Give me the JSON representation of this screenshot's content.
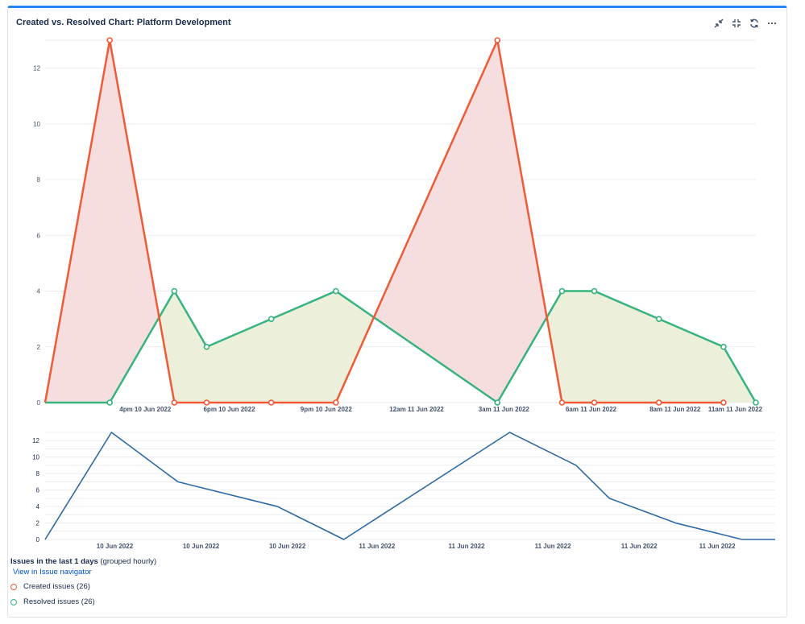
{
  "header": {
    "title": "Created vs. Resolved Chart: Platform Development",
    "tools": [
      {
        "name": "minimize-icon"
      },
      {
        "name": "collapse-icon"
      },
      {
        "name": "refresh-icon"
      },
      {
        "name": "more-icon"
      }
    ]
  },
  "colors": {
    "created": "#f05a37",
    "resolved": "#36b37e",
    "created_fill": "#f6dede",
    "resolved_fill": "#ecefda",
    "trend": "#2d6aa3",
    "accent": "#2684ff"
  },
  "chart_data": [
    {
      "type": "area",
      "title": "Created vs. Resolved Chart: Platform Development",
      "x_ticks": [
        "4pm 10 Jun 2022",
        "6pm 10 Jun 2022",
        "9pm 10 Jun 2022",
        "12am 11 Jun 2022",
        "3am 11 Jun 2022",
        "6am 11 Jun 2022",
        "8am 11 Jun 2022",
        "11am 11 Jun 2022"
      ],
      "y_ticks": [
        0,
        2,
        4,
        6,
        8,
        10,
        12
      ],
      "ylim": [
        0,
        13
      ],
      "series": [
        {
          "name": "Created issues (26)",
          "values": [
            0,
            13,
            0,
            0,
            0,
            0,
            13,
            0,
            0,
            0,
            0
          ]
        },
        {
          "name": "Resolved issues (26)",
          "values": [
            0,
            0,
            4,
            2,
            3,
            4,
            0,
            4,
            4,
            3,
            2,
            0
          ]
        }
      ],
      "created_x": [
        0,
        2,
        4,
        5,
        7,
        9,
        14,
        16,
        17,
        19,
        21
      ],
      "resolved_x": [
        0,
        2,
        4,
        5,
        7,
        9,
        14,
        16,
        17,
        19,
        21,
        22
      ]
    },
    {
      "type": "line",
      "x_ticks": [
        "10 Jun 2022",
        "10 Jun 2022",
        "10 Jun 2022",
        "11 Jun 2022",
        "11 Jun 2022",
        "11 Jun 2022",
        "11 Jun 2022",
        "11 Jun 2022"
      ],
      "y_ticks": [
        0,
        2,
        4,
        6,
        8,
        10,
        12
      ],
      "ylim": [
        0,
        13
      ],
      "x": [
        0,
        2,
        4,
        7,
        9,
        14,
        16,
        17,
        19,
        21,
        22
      ],
      "values": [
        0,
        13,
        7,
        4,
        0,
        13,
        9,
        5,
        2,
        0,
        0
      ]
    }
  ],
  "legend": {
    "title": "Issues in the last 1 days",
    "subtitle": "(grouped hourly)",
    "link": "View in Issue navigator",
    "items": [
      {
        "label": "Created issues (26)"
      },
      {
        "label": "Resolved issues (26)"
      }
    ]
  }
}
